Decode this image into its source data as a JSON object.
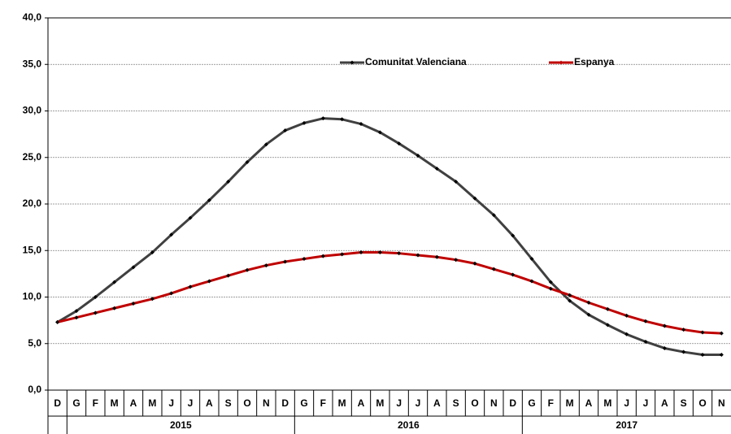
{
  "chart_data": {
    "type": "line",
    "categories": [
      "D",
      "G",
      "F",
      "M",
      "A",
      "M",
      "J",
      "J",
      "A",
      "S",
      "O",
      "N",
      "D",
      "G",
      "F",
      "M",
      "A",
      "M",
      "J",
      "J",
      "A",
      "S",
      "O",
      "N",
      "D",
      "G",
      "F",
      "M",
      "A",
      "M",
      "J",
      "J",
      "A",
      "S",
      "O",
      "N"
    ],
    "years": [
      null,
      "2015",
      "2015",
      "2015",
      "2015",
      "2015",
      "2015",
      "2015",
      "2015",
      "2015",
      "2015",
      "2015",
      "2015",
      "2016",
      "2016",
      "2016",
      "2016",
      "2016",
      "2016",
      "2016",
      "2016",
      "2016",
      "2016",
      "2016",
      "2016",
      "2017",
      "2017",
      "2017",
      "2017",
      "2017",
      "2017",
      "2017",
      "2017",
      "2017",
      "2017",
      "2017"
    ],
    "series": [
      {
        "name": "Comunitat Valenciana",
        "color": "#404040",
        "values": [
          7.3,
          8.5,
          10.0,
          11.6,
          13.2,
          14.8,
          16.7,
          18.5,
          20.4,
          22.4,
          24.5,
          26.4,
          27.9,
          28.7,
          29.2,
          29.1,
          28.6,
          27.7,
          26.5,
          25.2,
          23.8,
          22.4,
          20.6,
          18.8,
          16.6,
          14.1,
          11.6,
          9.6,
          8.1,
          7.0,
          6.0,
          5.2,
          4.5,
          4.1,
          3.8,
          3.8
        ]
      },
      {
        "name": "Espanya",
        "color": "#c00000",
        "values": [
          7.3,
          7.8,
          8.3,
          8.8,
          9.3,
          9.8,
          10.4,
          11.1,
          11.7,
          12.3,
          12.9,
          13.4,
          13.8,
          14.1,
          14.4,
          14.6,
          14.8,
          14.8,
          14.7,
          14.5,
          14.3,
          14.0,
          13.6,
          13.0,
          12.4,
          11.7,
          10.9,
          10.2,
          9.4,
          8.7,
          8.0,
          7.4,
          6.9,
          6.5,
          6.2,
          6.1
        ]
      }
    ],
    "ylim": [
      0,
      40
    ],
    "yticks": [
      {
        "value": 0,
        "label": "0,0"
      },
      {
        "value": 5,
        "label": "5,0"
      },
      {
        "value": 10,
        "label": "10,0"
      },
      {
        "value": 15,
        "label": "15,0"
      },
      {
        "value": 20,
        "label": "20,0"
      },
      {
        "value": 25,
        "label": "25,0"
      },
      {
        "value": 30,
        "label": "30,0"
      },
      {
        "value": 35,
        "label": "35,0"
      },
      {
        "value": 40,
        "label": "40,0"
      }
    ],
    "grid": true,
    "legend": "top"
  }
}
